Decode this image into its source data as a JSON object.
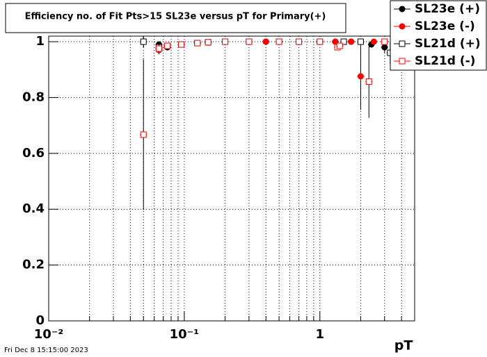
{
  "chart_data": {
    "type": "scatter",
    "title": "Efficiency no. of Fit Pts>15 SL23e versus pT for Primary(+)",
    "x_label": "pT",
    "timestamp": "Fri Dec  8 15:15:00 2023",
    "xscale": "log",
    "xlim": [
      0.01,
      5
    ],
    "ylim": [
      0,
      1.02
    ],
    "xticks": [
      {
        "value": 0.01,
        "label": "10⁻²"
      },
      {
        "value": 0.1,
        "label": "10⁻¹"
      },
      1
    ],
    "xminorticks": [
      0.02,
      0.03,
      0.04,
      0.05,
      0.06,
      0.07,
      0.08,
      0.09,
      0.2,
      0.3,
      0.4,
      0.5,
      0.6,
      0.7,
      0.8,
      0.9,
      2,
      3,
      4
    ],
    "yticks": [
      0,
      0.2,
      0.4,
      0.6,
      0.8,
      1
    ],
    "grid": true,
    "legend": "top-right",
    "series": [
      {
        "name": "SL23e (+)",
        "color": "#000000",
        "marker": "circle",
        "filled": true,
        "x": [
          0.065,
          0.075,
          0.095,
          0.125,
          0.15,
          0.2,
          0.3,
          0.4,
          0.5,
          0.7,
          1.0,
          1.3,
          1.7,
          2.0,
          2.4,
          3.0
        ],
        "values": [
          0.99,
          0.98,
          0.99,
          0.995,
          0.997,
          1,
          1,
          1,
          1,
          1,
          1,
          1,
          1,
          1,
          0.99,
          0.98
        ],
        "errors": [
          0.01,
          0.01,
          0.008,
          0.005,
          0.004,
          0.002,
          0.001,
          0.001,
          0.001,
          0.001,
          0.002,
          0.003,
          0.004,
          0.005,
          0.01,
          0.02
        ]
      },
      {
        "name": "SL23e (-)",
        "color": "#ff0000",
        "marker": "circle",
        "filled": true,
        "x": [
          0.05,
          0.065,
          0.075,
          0.095,
          0.125,
          0.15,
          0.2,
          0.3,
          0.4,
          0.5,
          0.7,
          1.0,
          1.3,
          1.7,
          2.0,
          2.5,
          3.0,
          4.0
        ],
        "values": [
          1,
          0.97,
          0.985,
          0.99,
          0.995,
          0.998,
          1,
          1,
          1,
          1,
          1,
          1,
          1,
          1,
          0.876,
          1,
          1,
          1
        ],
        "errors": [
          0.02,
          0.015,
          0.01,
          0.008,
          0.005,
          0.004,
          0.002,
          0.001,
          0.001,
          0.001,
          0.001,
          0.002,
          0.003,
          0.004,
          0.12,
          0.01,
          0.01,
          0.01
        ]
      },
      {
        "name": "SL21d (+)",
        "color": "#000000",
        "marker": "square",
        "filled": false,
        "x": [
          0.05,
          0.065,
          0.075,
          0.095,
          0.125,
          0.15,
          0.2,
          0.3,
          0.5,
          0.7,
          1.0,
          1.5,
          2.0,
          3.3
        ],
        "values": [
          1,
          0.98,
          0.985,
          0.99,
          0.995,
          0.998,
          1,
          1,
          1,
          1,
          1,
          1,
          1,
          0.96
        ],
        "errors": [
          0.02,
          0.015,
          0.01,
          0.008,
          0.005,
          0.004,
          0.002,
          0.001,
          0.001,
          0.001,
          0.002,
          0.003,
          0.005,
          0.04
        ]
      },
      {
        "name": "SL21d (-)",
        "color": "#ff0000",
        "marker": "square",
        "filled": false,
        "x": [
          0.05,
          0.065,
          0.075,
          0.095,
          0.125,
          0.15,
          0.2,
          0.3,
          0.5,
          0.7,
          1.0,
          1.35,
          1.4,
          2.3,
          3.0
        ],
        "values": [
          0.667,
          0.975,
          0.985,
          0.99,
          0.995,
          0.998,
          1,
          1,
          1,
          1,
          1,
          0.98,
          0.985,
          0.857,
          1
        ],
        "errors": [
          0.27,
          0.015,
          0.01,
          0.008,
          0.005,
          0.004,
          0.002,
          0.001,
          0.001,
          0.001,
          0.002,
          0.01,
          0.01,
          0.13,
          0.01
        ]
      }
    ]
  }
}
